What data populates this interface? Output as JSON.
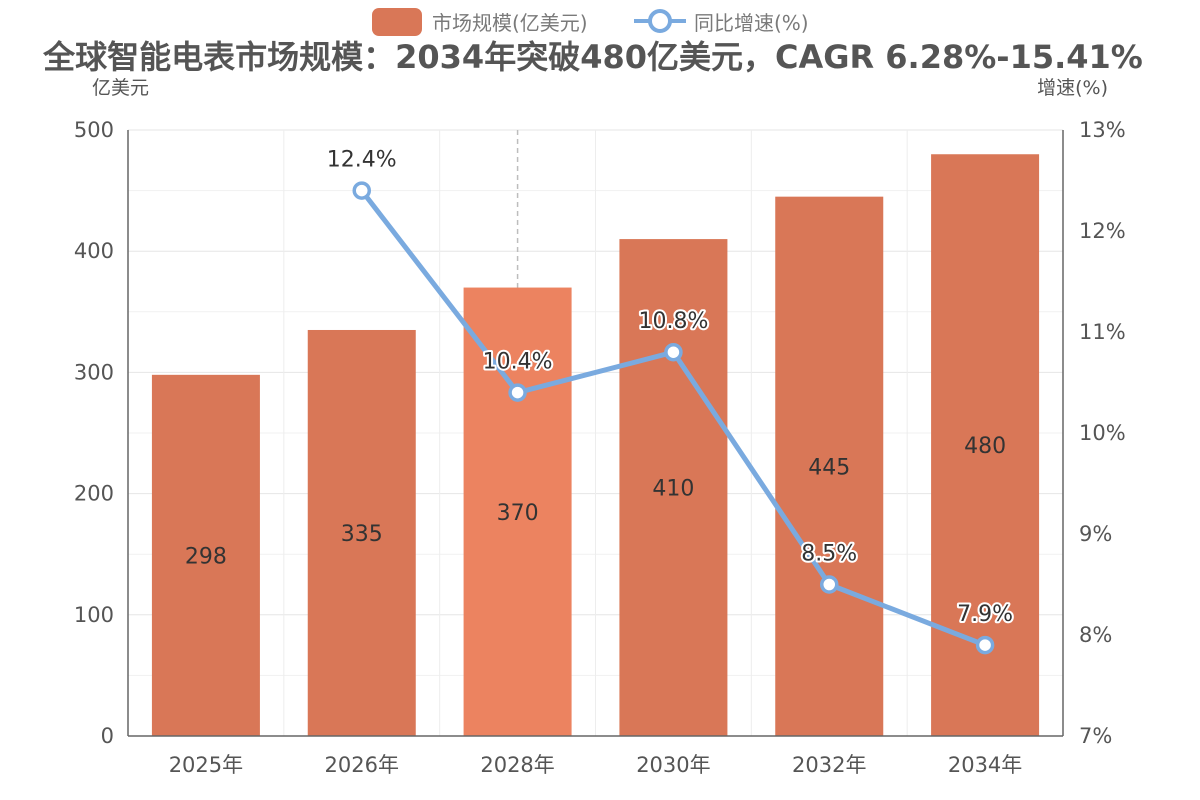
{
  "chart_data": {
    "type": "bar",
    "title": "全球智能电表市场规模：2034年突破480亿美元，CAGR 6.28%-15.41%",
    "categories": [
      "2025年",
      "2026年",
      "2028年",
      "2030年",
      "2032年",
      "2034年"
    ],
    "ylabel": "亿美元",
    "y2label": "增速(%)",
    "ylim": [
      0,
      500
    ],
    "y_ticks": [
      "0",
      "100",
      "200",
      "300",
      "400",
      "500"
    ],
    "y2lim": [
      7,
      13
    ],
    "y2_ticks": [
      "7%",
      "8%",
      "9%",
      "10%",
      "11%",
      "12%",
      "13%"
    ],
    "grid": true,
    "legend_position": "top-center",
    "highlighted_category": "2028年",
    "series": [
      {
        "name": "市场规模(亿美元)",
        "type": "bar",
        "axis": "left",
        "color": "#d97757",
        "highlight_color": "#ec8360",
        "values": [
          298,
          335,
          370,
          410,
          445,
          480
        ],
        "labels": [
          "298",
          "335",
          "370",
          "410",
          "445",
          "480"
        ]
      },
      {
        "name": "同比增速(%)",
        "type": "line",
        "axis": "right",
        "color": "#7aaadf",
        "values": [
          null,
          12.4,
          10.4,
          10.8,
          8.5,
          7.9
        ],
        "labels": [
          "",
          "12.4%",
          "10.4%",
          "10.8%",
          "8.5%",
          "7.9%"
        ]
      }
    ]
  }
}
